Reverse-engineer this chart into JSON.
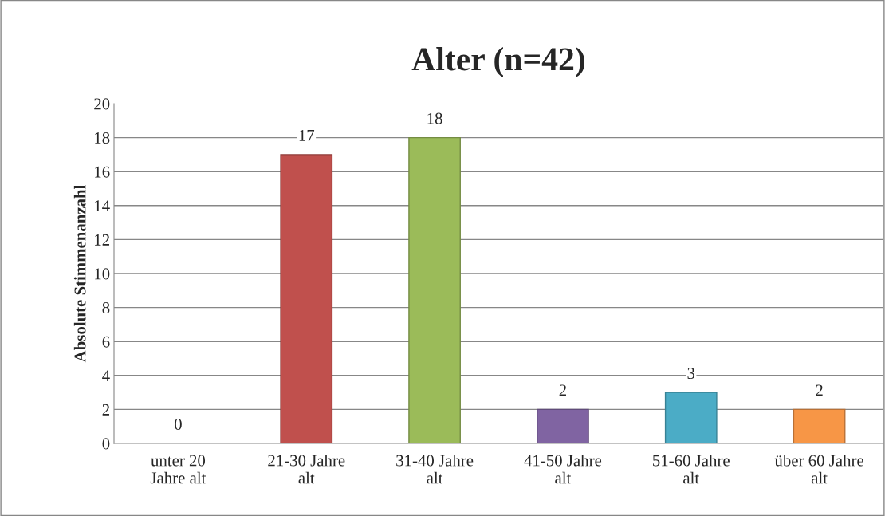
{
  "chart_data": {
    "type": "bar",
    "title": "Alter (n=42)",
    "ylabel": "Absolute Stimmenanzahl",
    "categories": [
      "unter 20 Jahre alt",
      "21-30 Jahre alt",
      "31-40 Jahre alt",
      "41-50 Jahre alt",
      "51-60 Jahre alt",
      "über 60 Jahre alt"
    ],
    "values": [
      0,
      17,
      18,
      2,
      3,
      2
    ],
    "colors": [
      "#4f81bd",
      "#c0504d",
      "#9bbb59",
      "#8064a2",
      "#4bacc6",
      "#f79646"
    ],
    "ylim": [
      0,
      20
    ],
    "yticks": [
      0,
      2,
      4,
      6,
      8,
      10,
      12,
      14,
      16,
      18,
      20
    ],
    "grid": "y",
    "data_labels": true
  }
}
